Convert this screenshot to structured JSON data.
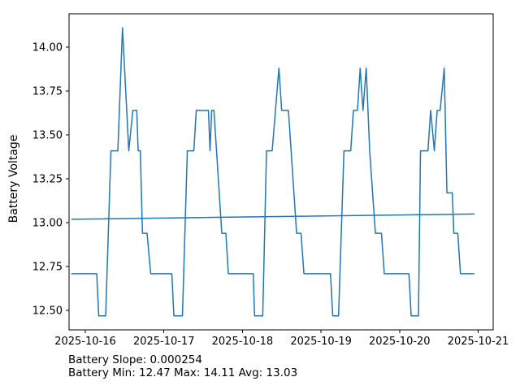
{
  "chart_data": {
    "type": "line",
    "title": "",
    "xlabel": "",
    "ylabel": "Battery Voltage",
    "x_unit": "days since 2025-10-16 00:00",
    "xlim": [
      -0.207,
      5.191
    ],
    "ylim": [
      12.39,
      14.19
    ],
    "grid": false,
    "legend_position": "none",
    "x_ticks": [
      {
        "value": 0,
        "label": "2025-10-16"
      },
      {
        "value": 1,
        "label": "2025-10-17"
      },
      {
        "value": 2,
        "label": "2025-10-18"
      },
      {
        "value": 3,
        "label": "2025-10-19"
      },
      {
        "value": 4,
        "label": "2025-10-20"
      },
      {
        "value": 5,
        "label": "2025-10-21"
      }
    ],
    "y_ticks": [
      {
        "value": 12.5,
        "label": "12.50"
      },
      {
        "value": 12.75,
        "label": "12.75"
      },
      {
        "value": 13.0,
        "label": "13.00"
      },
      {
        "value": 13.25,
        "label": "13.25"
      },
      {
        "value": 13.5,
        "label": "13.50"
      },
      {
        "value": 13.75,
        "label": "13.75"
      },
      {
        "value": 14.0,
        "label": "14.00"
      }
    ],
    "colors": {
      "series": "#1f77b4",
      "trend": "#1f77b4",
      "ylabel": "#1f77b4",
      "axis": "#000000",
      "text": "#000000",
      "background": "#ffffff"
    },
    "series": [
      {
        "name": "battery-voltage",
        "points": [
          [
            -0.173,
            12.71
          ],
          [
            0.145,
            12.71
          ],
          [
            0.171,
            12.47
          ],
          [
            0.259,
            12.47
          ],
          [
            0.326,
            13.41
          ],
          [
            0.414,
            13.41
          ],
          [
            0.473,
            14.11
          ],
          [
            0.553,
            13.41
          ],
          [
            0.605,
            13.64
          ],
          [
            0.655,
            13.64
          ],
          [
            0.672,
            13.41
          ],
          [
            0.7,
            13.41
          ],
          [
            0.727,
            12.94
          ],
          [
            0.786,
            12.94
          ],
          [
            0.832,
            12.71
          ],
          [
            1.101,
            12.71
          ],
          [
            1.127,
            12.47
          ],
          [
            1.236,
            12.47
          ],
          [
            1.298,
            13.41
          ],
          [
            1.381,
            13.41
          ],
          [
            1.412,
            13.64
          ],
          [
            1.567,
            13.64
          ],
          [
            1.587,
            13.41
          ],
          [
            1.608,
            13.64
          ],
          [
            1.637,
            13.64
          ],
          [
            1.737,
            12.94
          ],
          [
            1.789,
            12.94
          ],
          [
            1.82,
            12.71
          ],
          [
            2.137,
            12.71
          ],
          [
            2.154,
            12.47
          ],
          [
            2.258,
            12.47
          ],
          [
            2.306,
            13.41
          ],
          [
            2.378,
            13.41
          ],
          [
            2.464,
            13.88
          ],
          [
            2.499,
            13.64
          ],
          [
            2.585,
            13.64
          ],
          [
            2.689,
            12.94
          ],
          [
            2.745,
            12.94
          ],
          [
            2.782,
            12.71
          ],
          [
            3.12,
            12.71
          ],
          [
            3.149,
            12.47
          ],
          [
            3.223,
            12.47
          ],
          [
            3.292,
            13.41
          ],
          [
            3.378,
            13.41
          ],
          [
            3.412,
            13.64
          ],
          [
            3.464,
            13.64
          ],
          [
            3.498,
            13.88
          ],
          [
            3.534,
            13.64
          ],
          [
            3.575,
            13.88
          ],
          [
            3.619,
            13.41
          ],
          [
            3.692,
            12.94
          ],
          [
            3.769,
            12.94
          ],
          [
            3.805,
            12.71
          ],
          [
            4.119,
            12.71
          ],
          [
            4.147,
            12.47
          ],
          [
            4.24,
            12.47
          ],
          [
            4.266,
            13.41
          ],
          [
            4.361,
            13.41
          ],
          [
            4.395,
            13.64
          ],
          [
            4.442,
            13.41
          ],
          [
            4.478,
            13.64
          ],
          [
            4.516,
            13.64
          ],
          [
            4.568,
            13.88
          ],
          [
            4.602,
            13.17
          ],
          [
            4.671,
            13.17
          ],
          [
            4.69,
            12.94
          ],
          [
            4.74,
            12.94
          ],
          [
            4.775,
            12.71
          ],
          [
            4.947,
            12.71
          ]
        ]
      },
      {
        "name": "trend",
        "points": [
          [
            -0.173,
            13.02
          ],
          [
            4.947,
            13.05
          ]
        ]
      }
    ],
    "annotations": [
      "Battery Slope: 0.000254",
      "Battery Min: 12.47 Max: 14.11 Avg: 13.03"
    ],
    "stats": {
      "slope": "0.000254",
      "min": "12.47",
      "max": "14.11",
      "avg": "13.03"
    }
  }
}
